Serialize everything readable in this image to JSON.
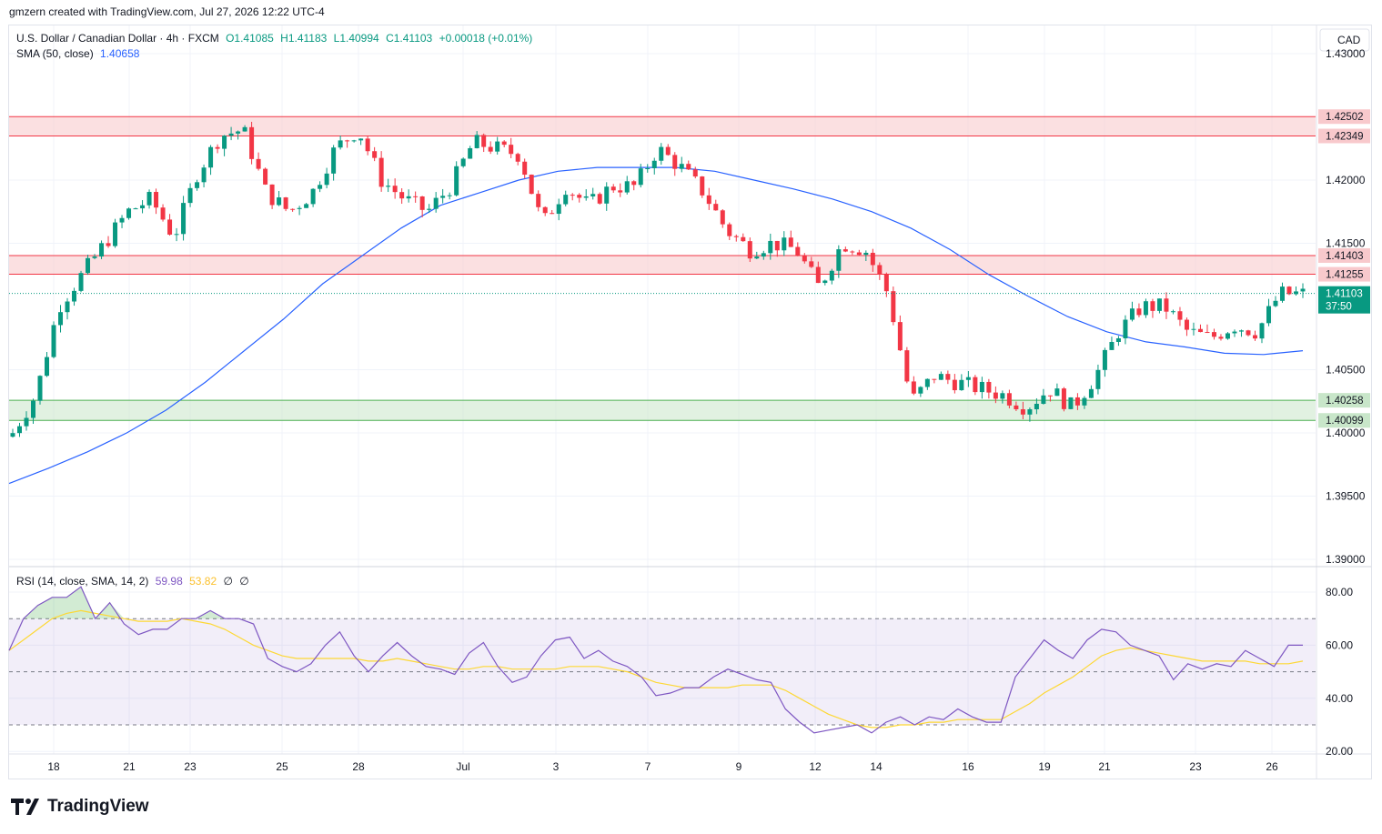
{
  "credit": "gmzern created with TradingView.com, Jul 27, 2026 12:22 UTC-4",
  "brand": "TradingView",
  "colors": {
    "up": "#089981",
    "down": "#f23645",
    "sma": "#2962ff",
    "rsi": "#7e57c2",
    "rsi_sma": "#fdd835",
    "resistance_zone": "#f7c6c9",
    "support_zone": "#c8e6c9",
    "current_price_label": "#089981"
  },
  "legend": {
    "symbol": "U.S. Dollar / Canadian Dollar · 4h · FXCM",
    "open": "O1.41085",
    "high": "H1.41183",
    "low": "L1.40994",
    "close": "C1.41103",
    "change": "+0.00018 (+0.01%)",
    "sma_label": "SMA (50, close)",
    "sma_value": "1.40658"
  },
  "rsi_legend": {
    "label": "RSI (14, close, SMA, 14, 2)",
    "value": "59.98",
    "sma_value": "53.82",
    "extra1": "∅",
    "extra2": "∅"
  },
  "chart_data": {
    "type": "candlestick",
    "currency": "CAD",
    "y_ticks": [
      "1.39000",
      "1.39500",
      "1.40000",
      "1.40500",
      "1.41500",
      "1.42000",
      "1.43000"
    ],
    "x_ticks": [
      "18",
      "21",
      "23",
      "25",
      "28",
      "Jul",
      "3",
      "7",
      "9",
      "12",
      "14",
      "16",
      "19",
      "21",
      "23",
      "26"
    ],
    "current_price": "1.41103",
    "countdown": "37:50",
    "zones": [
      {
        "type": "resistance",
        "top": 1.42502,
        "bottom": 1.42349,
        "top_label": "1.42502",
        "bottom_label": "1.42349"
      },
      {
        "type": "resistance",
        "top": 1.41403,
        "bottom": 1.41255,
        "top_label": "1.41403",
        "bottom_label": "1.41255"
      },
      {
        "type": "support",
        "top": 1.40258,
        "bottom": 1.40099,
        "top_label": "1.40258",
        "bottom_label": "1.40099"
      }
    ],
    "price_path": [
      1.4,
      1.403,
      1.41,
      1.4125,
      1.415,
      1.4175,
      1.4185,
      1.4155,
      1.4205,
      1.4235,
      1.424,
      1.419,
      1.4175,
      1.419,
      1.4225,
      1.424,
      1.42,
      1.4185,
      1.4175,
      1.4195,
      1.423,
      1.4225,
      1.422,
      1.4165,
      1.4195,
      1.418,
      1.4195,
      1.4195,
      1.4225,
      1.421,
      1.419,
      1.416,
      1.4145,
      1.415,
      1.4145,
      1.4115,
      1.415,
      1.4145,
      1.411,
      1.4025,
      1.4045,
      1.404,
      1.4035,
      1.403,
      1.402,
      1.4035,
      1.402,
      1.4045,
      1.408,
      1.41,
      1.41,
      1.408,
      1.4075,
      1.4085,
      1.408,
      1.411,
      1.411
    ],
    "sma_path": [
      1.396,
      1.3972,
      1.3985,
      1.4,
      1.4018,
      1.404,
      1.4065,
      1.409,
      1.4118,
      1.414,
      1.4162,
      1.418,
      1.419,
      1.42,
      1.4207,
      1.421,
      1.421,
      1.421,
      1.4207,
      1.42,
      1.4193,
      1.4185,
      1.4175,
      1.4162,
      1.4145,
      1.4125,
      1.4108,
      1.4092,
      1.408,
      1.4072,
      1.4068,
      1.4063,
      1.4062,
      1.4065
    ],
    "rsi": {
      "y_ticks": [
        "80.00",
        "60.00",
        "40.00",
        "20.00"
      ],
      "levels": [
        70,
        50,
        30
      ],
      "range": [
        20,
        85
      ],
      "values": [
        58,
        70,
        75,
        78,
        78,
        82,
        70,
        76,
        68,
        64,
        66,
        66,
        70,
        70,
        73,
        70,
        70,
        68,
        55,
        52,
        50,
        53,
        60,
        65,
        56,
        50,
        56,
        61,
        56,
        52,
        51,
        49,
        57,
        61,
        52,
        46,
        48,
        56,
        62,
        63,
        55,
        58,
        54,
        52,
        48,
        41,
        42,
        44,
        44,
        48,
        51,
        49,
        47,
        46,
        36,
        31,
        27,
        28,
        29,
        30,
        27,
        31,
        33,
        30,
        33,
        32,
        36,
        33,
        31,
        31,
        48,
        55,
        62,
        58,
        55,
        62,
        66,
        65,
        60,
        58,
        56,
        47,
        53,
        51,
        53,
        52,
        58,
        55,
        52,
        60,
        60
      ],
      "sma_values": [
        58,
        62,
        66,
        70,
        72,
        73,
        72,
        71,
        70,
        69,
        69,
        69,
        70,
        69,
        68,
        66,
        63,
        60,
        58,
        56,
        55,
        55,
        55,
        55,
        55,
        54,
        54,
        55,
        54,
        53,
        52,
        51,
        51,
        52,
        52,
        51,
        51,
        51,
        51,
        52,
        52,
        52,
        51,
        50,
        48,
        46,
        45,
        44,
        44,
        44,
        44,
        45,
        45,
        45,
        43,
        40,
        37,
        34,
        32,
        30,
        29,
        29,
        30,
        30,
        31,
        31,
        32,
        32,
        32,
        32,
        35,
        38,
        42,
        45,
        48,
        52,
        56,
        58,
        59,
        58,
        57,
        56,
        55,
        54,
        54,
        54,
        54,
        53,
        53,
        53,
        54
      ]
    }
  }
}
